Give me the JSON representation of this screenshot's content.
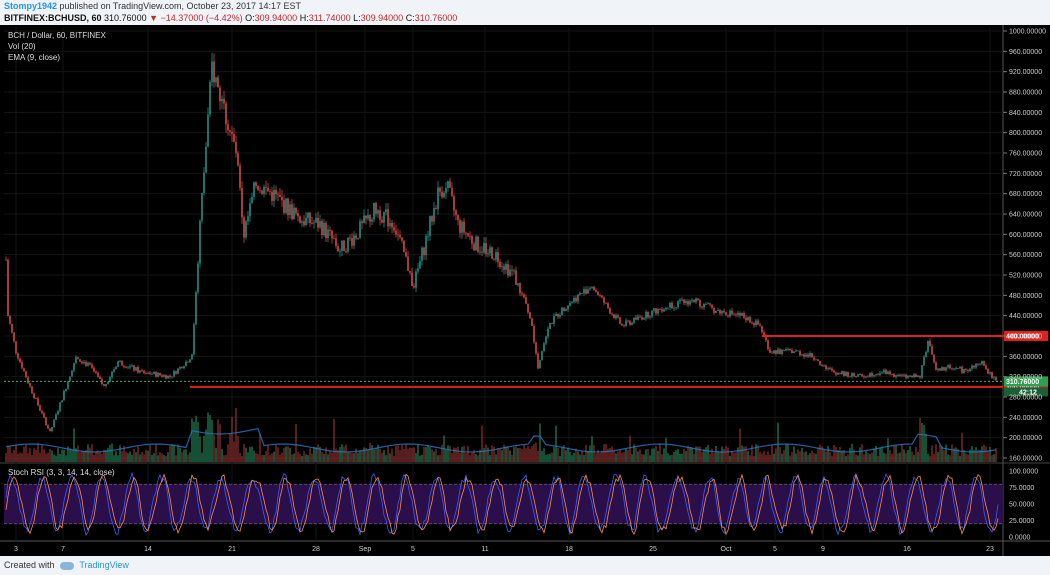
{
  "header": {
    "user": "Stompy1942",
    "published": "published on TradingView.com, October 23, 2017 14:17 EST",
    "symbol": "BITFINEX:BCHUSD, 60",
    "last": "310.76000",
    "change_arrow": "▼",
    "change": "−14.37000 (−4.42%)",
    "o_label": "O:",
    "o": "309.94000",
    "h_label": "H:",
    "h": "311.74000",
    "l_label": "L:",
    "l": "309.94000",
    "c_label": "C:",
    "c": "310.76000"
  },
  "legend": {
    "title": "BCH / Dollar, 60, BITFINEX",
    "vol": "Vol (20)",
    "ema": "EMA (9, close)",
    "stoch": "Stoch RSI (3, 3, 14, 14, close)"
  },
  "footer": {
    "created": "Created with",
    "brand": "TradingView"
  },
  "colors": {
    "up": "#26a69a",
    "down": "#ef5350",
    "level_line": "#e0201b",
    "price_tag": "#2e9e4f",
    "stoch_k": "#3a5cff",
    "stoch_d": "#ff8a50",
    "stoch_band": "#2b0f4a"
  },
  "price_axis": {
    "labels": [
      "1000.00000",
      "960.00000",
      "920.00000",
      "880.00000",
      "840.00000",
      "800.00000",
      "760.00000",
      "720.00000",
      "680.00000",
      "640.00000",
      "600.00000",
      "560.00000",
      "520.00000",
      "480.00000",
      "440.00000",
      "400.00000",
      "360.00000",
      "320.00000",
      "280.00000",
      "240.00000",
      "200.00000",
      "160.00000"
    ],
    "min": 160,
    "max": 1000
  },
  "stoch_axis": {
    "labels": [
      "100.0000",
      "75.0000",
      "50.0000",
      "25.0000",
      "0.0000"
    ],
    "min": 0,
    "max": 100
  },
  "time_axis": {
    "labels": [
      "3",
      "7",
      "14",
      "21",
      "28",
      "Sep",
      "5",
      "11",
      "18",
      "25",
      "Oct",
      "5",
      "9",
      "16",
      "23"
    ]
  },
  "levels": [
    {
      "price": 400,
      "label": "400.00000"
    },
    {
      "price": 300,
      "label": "300.00000"
    }
  ],
  "current_price": {
    "price": 310.76,
    "label": "310.76000",
    "countdown": "42:12"
  },
  "chart_data": {
    "type": "line",
    "title": "BCH / Dollar, 60, BITFINEX",
    "x": [
      "3",
      "7",
      "14",
      "21",
      "28",
      "Sep",
      "5",
      "11",
      "18",
      "25",
      "Oct",
      "5",
      "9",
      "16",
      "23"
    ],
    "series": [
      {
        "name": "BCH / Dollar",
        "values": [
          660,
          215,
          330,
          760,
          640,
          610,
          560,
          620,
          500,
          440,
          430,
          360,
          330,
          350,
          311
        ]
      }
    ],
    "ylim": [
      160,
      1000
    ]
  }
}
